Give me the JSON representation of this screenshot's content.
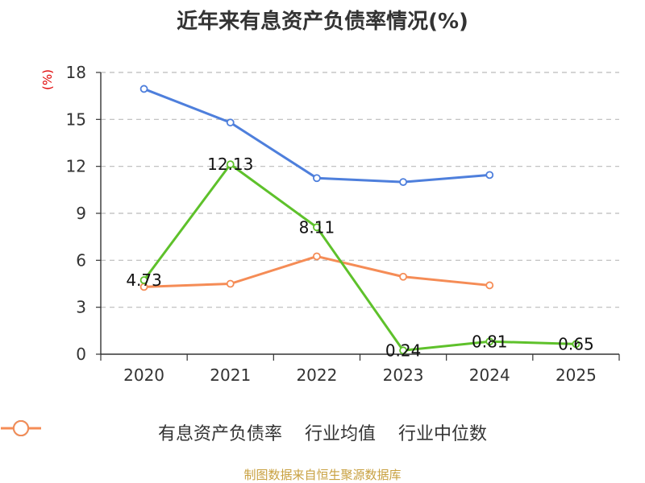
{
  "chart_data": {
    "type": "line",
    "title": "近年来有息资产负债率情况(%)",
    "unit_label": "(%)",
    "categories": [
      "2020",
      "2021",
      "2022",
      "2023",
      "2024",
      "2025"
    ],
    "ylim": [
      0,
      18
    ],
    "yticks": [
      "0",
      "3",
      "6",
      "9",
      "12",
      "15",
      "18"
    ],
    "grid": true,
    "legend_position": "bottom",
    "series": [
      {
        "name": "有息资产负债率",
        "color": "#5ec12b",
        "values": [
          4.73,
          12.13,
          8.11,
          0.24,
          0.81,
          0.65
        ],
        "labels": [
          "4.73",
          "12.13",
          "8.11",
          "0.24",
          "0.81",
          "0.65"
        ]
      },
      {
        "name": "行业均值",
        "color": "#4e7fdc",
        "values": [
          16.95,
          14.8,
          11.25,
          11.0,
          11.45,
          null
        ]
      },
      {
        "name": "行业中位数",
        "color": "#f58c56",
        "values": [
          4.3,
          4.5,
          6.25,
          4.95,
          4.4,
          null
        ]
      }
    ]
  },
  "footer": {
    "source": "制图数据来自恒生聚源数据库"
  }
}
